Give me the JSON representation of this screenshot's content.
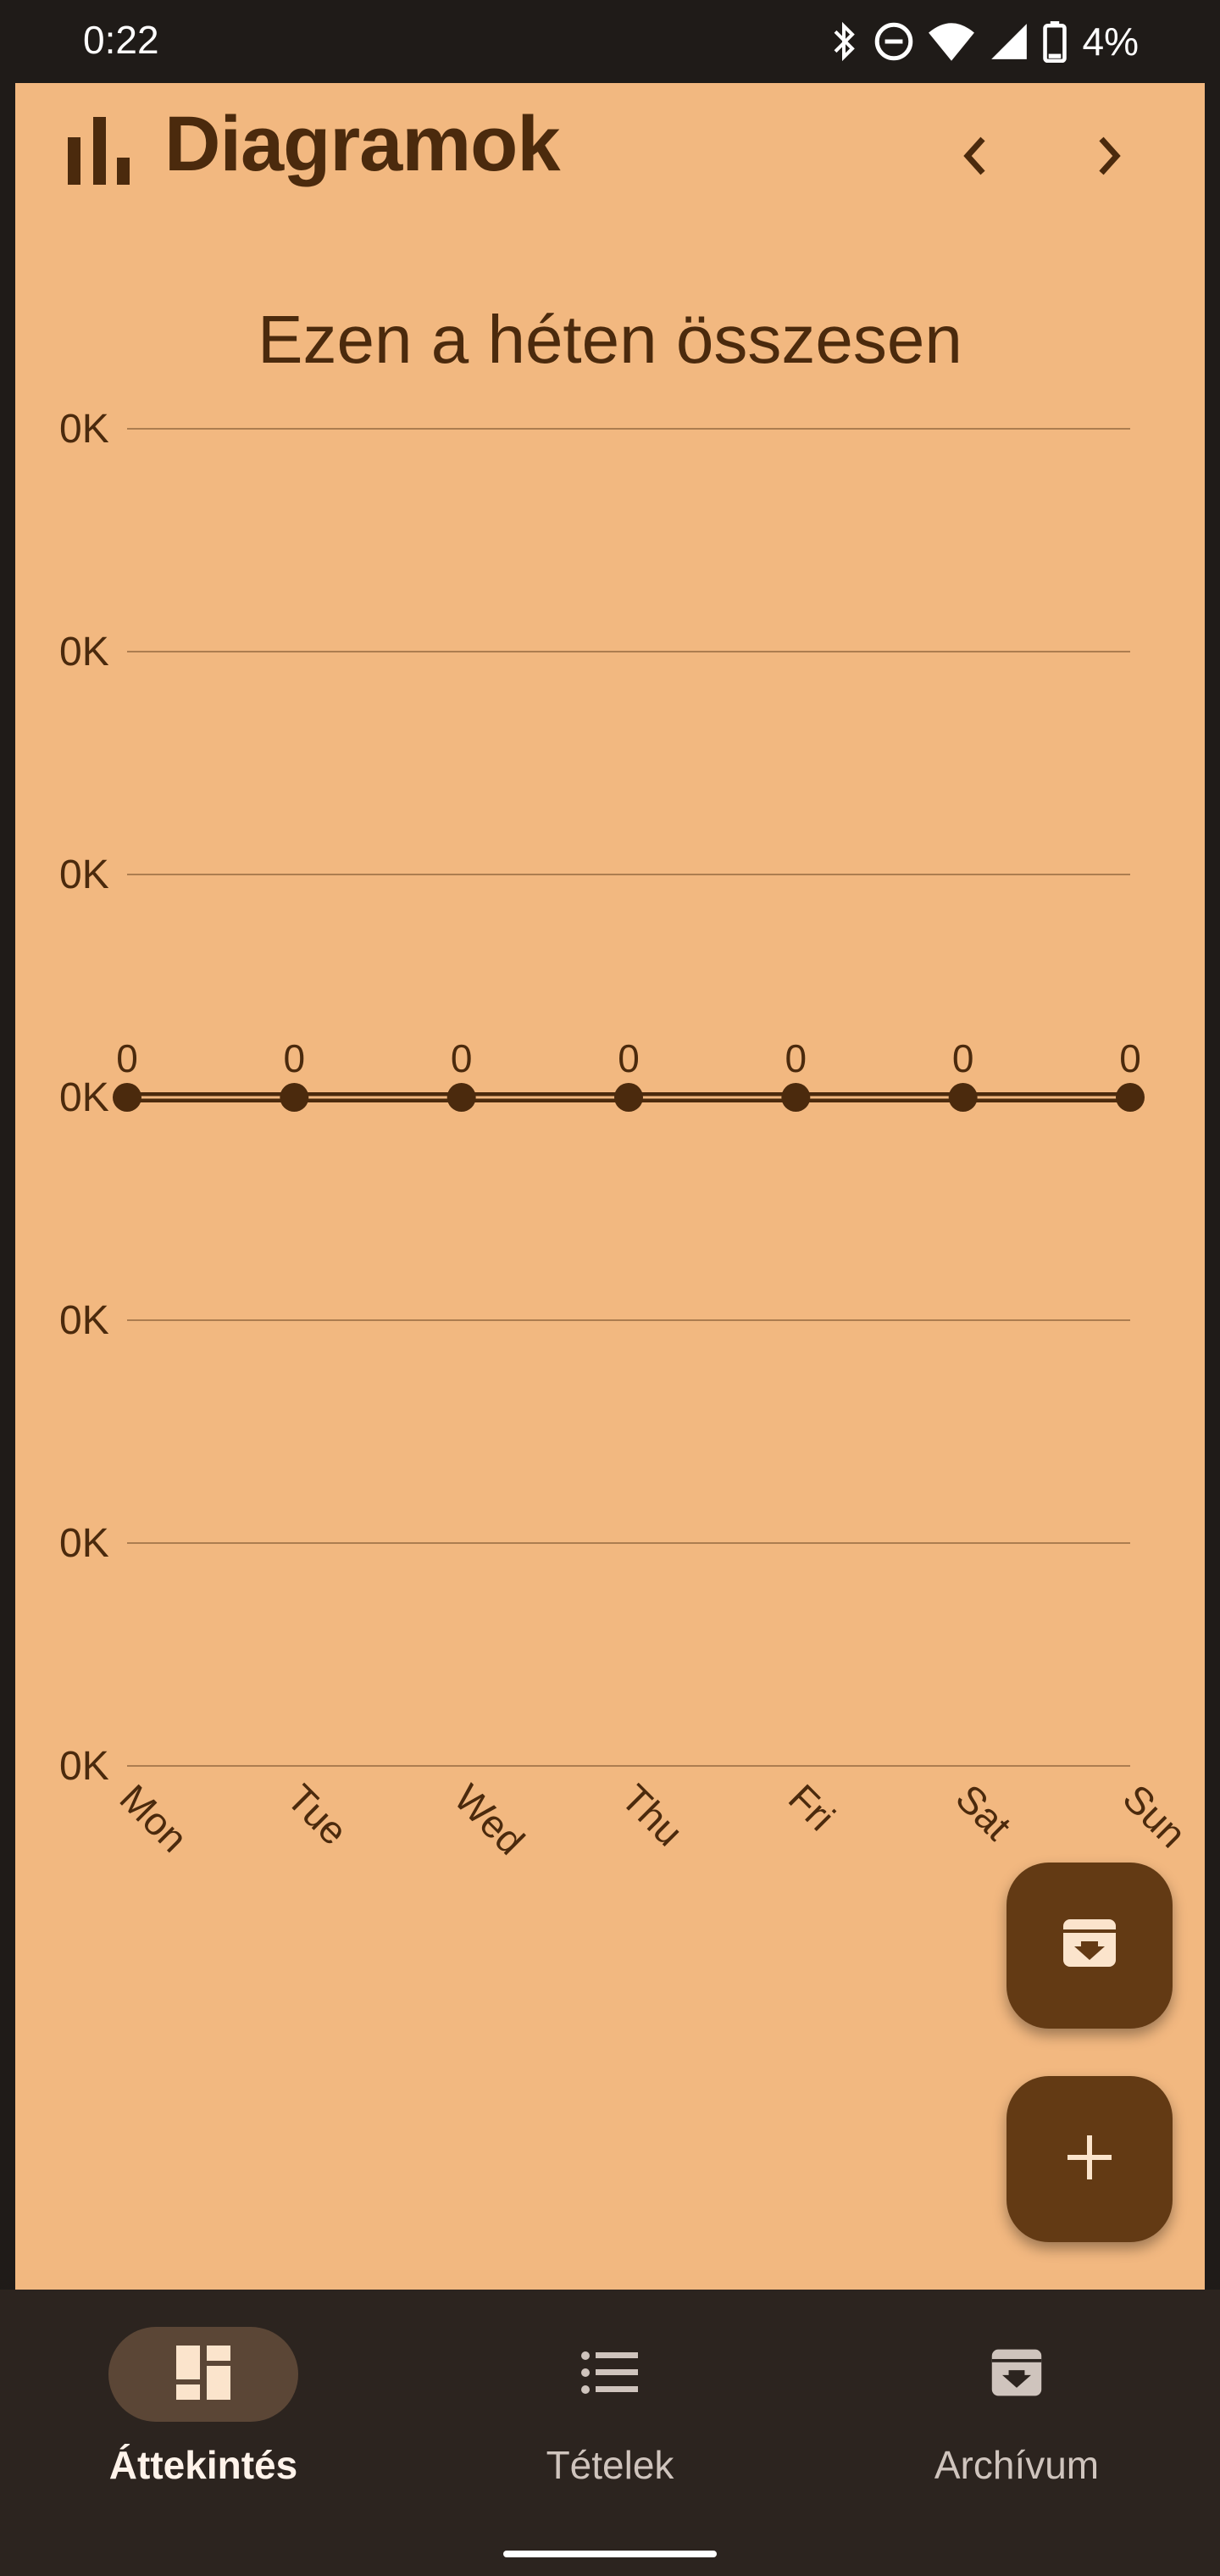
{
  "status_bar": {
    "time": "0:22",
    "battery_percent": "4%",
    "icons": [
      "bluetooth-icon",
      "do-not-disturb-icon",
      "wifi-icon",
      "cellular-signal-icon",
      "battery-icon"
    ]
  },
  "header": {
    "icon": "bar-chart-icon",
    "title": "Diagramok",
    "prev_icon": "chevron-left-icon",
    "next_icon": "chevron-right-icon"
  },
  "chart_title": "Ezen a héten összesen",
  "chart_data": {
    "type": "line",
    "title": "Ezen a héten összesen",
    "categories": [
      "Mon",
      "Tue",
      "Wed",
      "Thu",
      "Fri",
      "Sat",
      "Sun"
    ],
    "series": [
      {
        "values": [
          0,
          0,
          0,
          0,
          0,
          0,
          0
        ]
      }
    ],
    "data_labels": [
      "0",
      "0",
      "0",
      "0",
      "0",
      "0",
      "0"
    ],
    "y_tick_labels": [
      "0K",
      "0K",
      "0K",
      "0K",
      "0K",
      "0K",
      "0K"
    ],
    "grid": true,
    "legend": "none"
  },
  "fabs": {
    "archive_icon": "archive-icon",
    "add_icon": "plus-icon"
  },
  "bottom_nav": {
    "items": [
      {
        "label": "Áttekintés",
        "icon": "dashboard-icon",
        "active": true
      },
      {
        "label": "Tételek",
        "icon": "list-icon",
        "active": false
      },
      {
        "label": "Archívum",
        "icon": "archive-icon",
        "active": false
      }
    ]
  },
  "colors": {
    "background": "#f2b880",
    "primary": "#4b2a0d",
    "fab": "#633a14",
    "nav_bar": "#2c241f",
    "status_bar": "#1f1b18"
  }
}
